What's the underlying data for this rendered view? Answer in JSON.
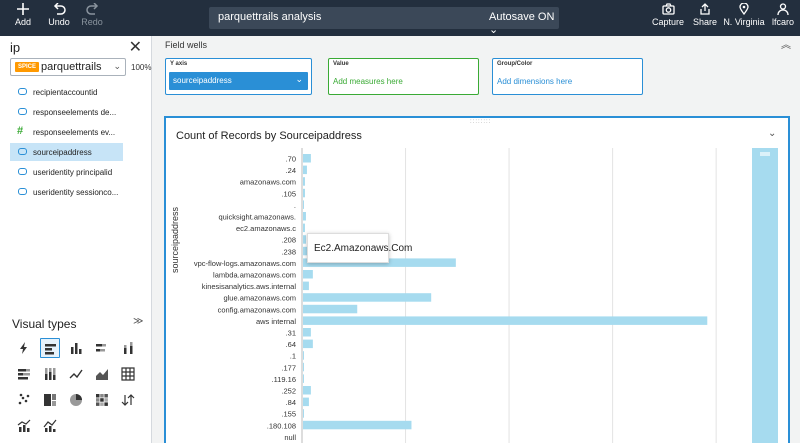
{
  "toolbar": {
    "add_label": "Add",
    "undo_label": "Undo",
    "redo_label": "Redo",
    "capture_label": "Capture",
    "share_label": "Share",
    "region_label": "N. Virginia",
    "user_label": "lfcaro"
  },
  "analysis": {
    "name": "parquettrails analysis",
    "autosave": "Autosave ON",
    "autosave_caret": "⌄"
  },
  "left_panel": {
    "search_value": "ip",
    "close_icon": "✕",
    "dataset_badge": "SPICE",
    "dataset_name": "parquettrails",
    "dataset_caret": "⌄",
    "spice_usage": "100%",
    "fields": [
      {
        "label": "recipientaccountid",
        "icon": "dimension-icon"
      },
      {
        "label": "responseelements de...",
        "icon": "dimension-icon"
      },
      {
        "label": "responseelements ev...",
        "icon": "measure-icon"
      },
      {
        "label": "sourceipaddress",
        "icon": "dimension-icon",
        "selected": true
      },
      {
        "label": "useridentity principalid",
        "icon": "dimension-icon"
      },
      {
        "label": "useridentity sessionco...",
        "icon": "dimension-icon"
      }
    ],
    "visual_types_label": "Visual types",
    "visual_types_caret": "≫"
  },
  "field_wells": {
    "title": "Field wells",
    "collapse_caret": "︽",
    "y_axis_label": "Y axis",
    "y_axis_value": "sourceipaddress",
    "value_label": "Value",
    "value_hint": "Add measures here",
    "group_label": "Group/Color",
    "group_hint": "Add dimensions here"
  },
  "visual": {
    "title": "Count of Records by Sourceipaddress",
    "menu_caret": "⌄",
    "grip": "::::::::",
    "tooltip": "Ec2.Amazonaws.Com"
  },
  "colors": {
    "topbar": "#232f3e",
    "accent": "#2a8fd6",
    "bar": "#a6dbef",
    "value_well": "#3aaa35",
    "spice": "#ff9900"
  },
  "chart_data": {
    "type": "bar",
    "orientation": "horizontal",
    "ylabel": "sourceipaddress",
    "xlabel": "",
    "categories": [
      ".70",
      ".24",
      "amazonaws.com",
      ".105",
      ".",
      "quicksight.amazonaws.",
      "ec2.amazonaws.c",
      ".208",
      ".238",
      "vpc-flow-logs.amazonaws.com",
      "lambda.amazonaws.com",
      "kinesisanalytics.aws.internal",
      "glue.amazonaws.com",
      "config.amazonaws.com",
      "aws internal",
      ".31",
      ".64",
      ".1",
      ".177",
      ".119.16",
      ".252",
      ".84",
      ".155",
      ".180.108",
      "null"
    ],
    "values": [
      8,
      4,
      2,
      2,
      1,
      3,
      2,
      3,
      8,
      155,
      10,
      6,
      130,
      55,
      410,
      8,
      10,
      1,
      1,
      1,
      8,
      6,
      1,
      110,
      0
    ],
    "xlim": [
      0,
      430
    ],
    "grid": true
  }
}
